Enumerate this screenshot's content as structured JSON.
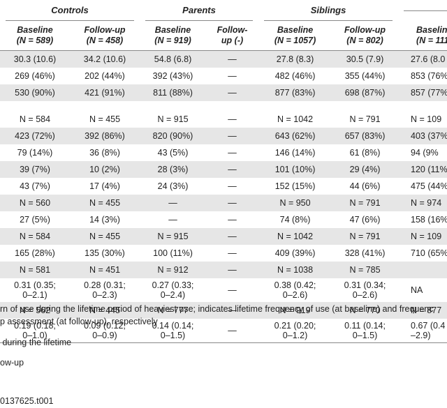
{
  "table": {
    "groups": [
      "Controls",
      "Parents",
      "Siblings"
    ],
    "columns": [
      [
        "Baseline",
        "(N = 589)"
      ],
      [
        "Follow-up",
        "(N = 458)"
      ],
      [
        "Baseline",
        "(N = 919)"
      ],
      [
        "Follow-",
        "up (-)"
      ],
      [
        "Baseline",
        "(N = 1057)"
      ],
      [
        "Follow-up",
        "(N = 802)"
      ],
      [
        "Baselin",
        "(N = 111"
      ]
    ],
    "rows": [
      [
        "30.3 (10.6)",
        "34.2 (10.6)",
        "54.8 (6.8)",
        "—",
        "27.8 (8.3)",
        "30.5 (7.9)",
        "27.6 (8.0"
      ],
      [
        "269 (46%)",
        "202 (44%)",
        "392 (43%)",
        "—",
        "482 (46%)",
        "355 (44%)",
        "853 (76%"
      ],
      [
        "530 (90%)",
        "421 (91%)",
        "811 (88%)",
        "—",
        "877 (83%)",
        "698 (87%)",
        "857 (77%"
      ],
      null,
      [
        "N = 584",
        "N = 455",
        "N = 915",
        "—",
        "N = 1042",
        "N = 791",
        "N = 109"
      ],
      [
        "423 (72%)",
        "392 (86%)",
        "820 (90%)",
        "—",
        "643 (62%)",
        "657 (83%)",
        "403 (37%"
      ],
      [
        "79 (14%)",
        "36 (8%)",
        "43 (5%)",
        "—",
        "146 (14%)",
        "61 (8%)",
        "94 (9%"
      ],
      [
        "39 (7%)",
        "10 (2%)",
        "28 (3%)",
        "—",
        "101 (10%)",
        "29 (4%)",
        "120 (11%"
      ],
      [
        "43 (7%)",
        "17 (4%)",
        "24 (3%)",
        "—",
        "152 (15%)",
        "44 (6%)",
        "475 (44%"
      ],
      [
        "N = 560",
        "N = 455",
        "—",
        "—",
        "N = 950",
        "N = 791",
        "N = 974"
      ],
      [
        "27 (5%)",
        "14 (3%)",
        "—",
        "—",
        "74 (8%)",
        "47 (6%)",
        "158 (16%"
      ],
      [
        "N = 584",
        "N = 455",
        "N = 915",
        "—",
        "N = 1042",
        "N = 791",
        "N = 109"
      ],
      [
        "165 (28%)",
        "135 (30%)",
        "100 (11%)",
        "—",
        "409 (39%)",
        "328 (41%)",
        "710 (65%"
      ],
      [
        "N = 581",
        "N = 451",
        "N = 912",
        "—",
        "N = 1038",
        "N = 785",
        null
      ],
      [
        [
          "0.31 (0.35;",
          "0–2.1)"
        ],
        [
          "0.28 (0.31;",
          "0–2.3)"
        ],
        [
          "0.27 (0.33;",
          "0–2.4)"
        ],
        "—",
        [
          "0.38 (0.42;",
          "0–2.6)"
        ],
        [
          "0.31 (0.34;",
          "0–2.6)"
        ],
        "NA"
      ],
      [
        "N = 562",
        "N = 445",
        "N = 777",
        "—",
        "N = 919",
        "N = 770",
        "N = 877"
      ],
      [
        [
          "0.19 (0.18;",
          "0–1.0)"
        ],
        [
          "0.09 (0.12;",
          "0–0.9)"
        ],
        [
          "0.14 (0.14;",
          "0–1.5)"
        ],
        "—",
        [
          "0.21 (0.20;",
          "0–1.2)"
        ],
        [
          "0.11 (0.14;",
          "0–1.5)"
        ],
        [
          "0.67 (0.4",
          "–2.9)"
        ]
      ]
    ]
  },
  "footnotes": [
    "rn of use during the lifetime period of heaviest use; indicates lifetime frequency of use (at baseline) and frequenc",
    "p assessment (at follow-up), respectively",
    " during the lifetime",
    "ow-up"
  ],
  "doi": "0137625.t001"
}
